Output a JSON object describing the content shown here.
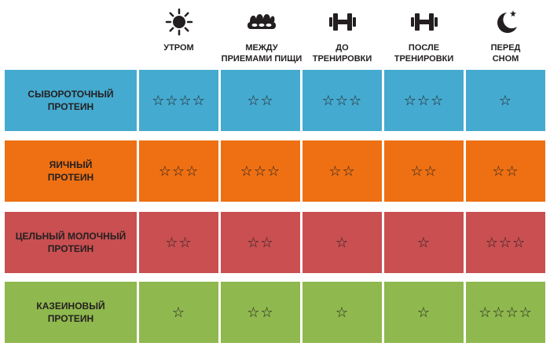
{
  "colors": {
    "whey": "#45aacf",
    "egg": "#ee7013",
    "milk": "#c94f51",
    "casein": "#8fb84e",
    "text": "#231f20"
  },
  "headers": [
    {
      "label": "УТРОМ",
      "icon": "sun-icon"
    },
    {
      "label": "МЕЖДУ\nПРИЕМАМИ ПИЩИ",
      "icon": "meal-icon"
    },
    {
      "label": "ДО\nТРЕНИРОВКИ",
      "icon": "dumbbell-icon"
    },
    {
      "label": "ПОСЛЕ\nТРЕНИРОВКИ",
      "icon": "dumbbell-icon"
    },
    {
      "label": "ПЕРЕД\nСНОМ",
      "icon": "moon-icon"
    }
  ],
  "rows": [
    {
      "label": "СЫВОРОТОЧНЫЙ\nПРОТЕИН",
      "cells": [
        "☆☆☆☆",
        "☆☆",
        "☆☆☆",
        "☆☆☆",
        "☆"
      ]
    },
    {
      "label": "ЯИЧНЫЙ\nПРОТЕИН",
      "cells": [
        "☆☆☆",
        "☆☆☆",
        "☆☆",
        "☆☆",
        "☆☆"
      ]
    },
    {
      "label": "ЦЕЛЬНЫЙ МОЛОЧНЫЙ\nПРОТЕИН",
      "cells": [
        "☆☆",
        "☆☆",
        "☆",
        "☆",
        "☆☆☆"
      ]
    },
    {
      "label": "КАЗЕИНОВЫЙ\nПРОТЕИН",
      "cells": [
        "☆",
        "☆☆",
        "☆",
        "☆",
        "☆☆☆☆"
      ]
    }
  ]
}
